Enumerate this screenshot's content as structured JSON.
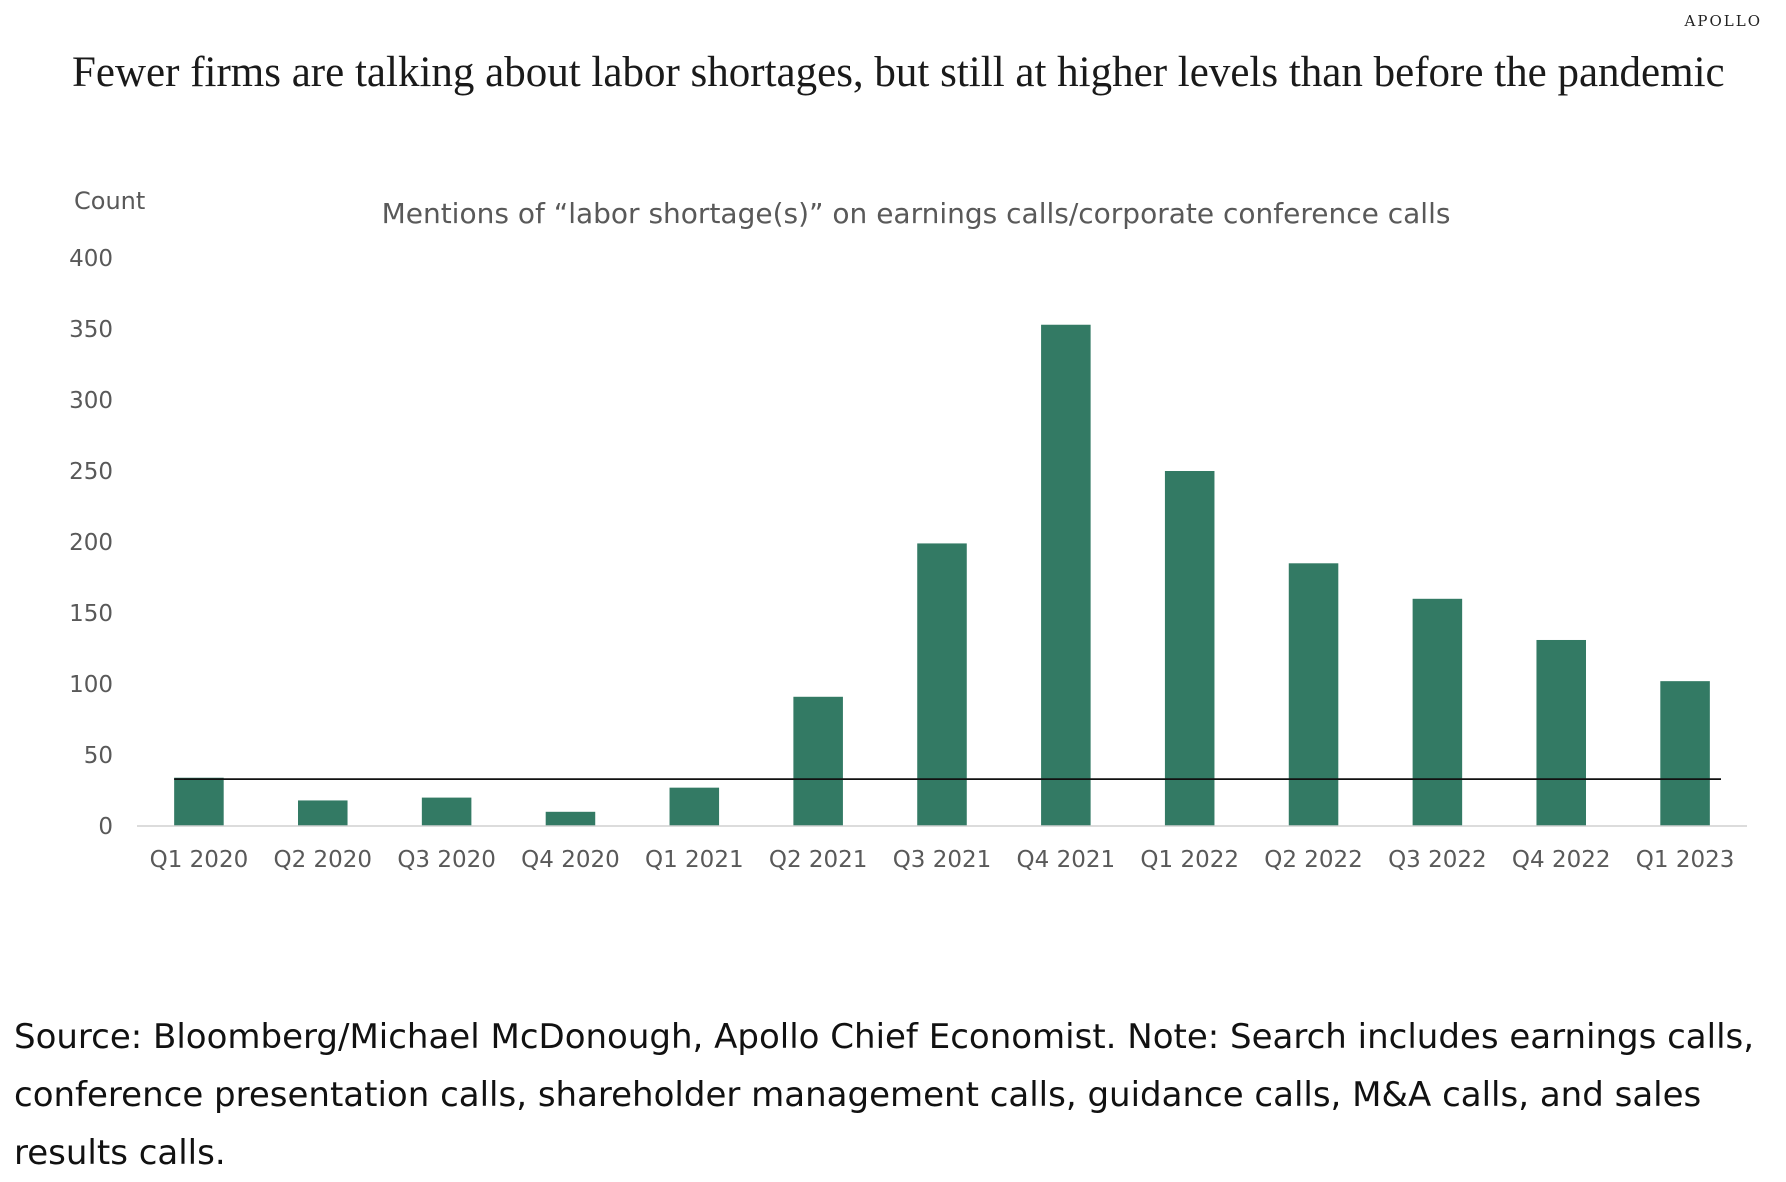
{
  "brand": "APOLLO",
  "headline": "Fewer firms are talking about labor shortages, but still at higher levels than before the pandemic",
  "source_note": "Source: Bloomberg/Michael McDonough, Apollo Chief Economist. Note: Search includes earnings calls, conference presentation calls, shareholder management calls, guidance calls, M&A calls, and sales results calls.",
  "colors": {
    "bar": "#337a64",
    "reference_line": "#111111",
    "axis": "#d0d0d0",
    "text": "#595959"
  },
  "chart_data": {
    "type": "bar",
    "title": "Mentions of “labor shortage(s)” on earnings calls/corporate conference calls",
    "ylabel": "Count",
    "xlabel": "",
    "categories": [
      "Q1 2020",
      "Q2 2020",
      "Q3 2020",
      "Q4 2020",
      "Q1 2021",
      "Q2 2021",
      "Q3 2021",
      "Q4 2021",
      "Q1 2022",
      "Q2 2022",
      "Q3 2022",
      "Q4 2022",
      "Q1 2023"
    ],
    "values": [
      34,
      18,
      20,
      10,
      27,
      91,
      199,
      353,
      250,
      185,
      160,
      131,
      102
    ],
    "ylim": [
      0,
      400
    ],
    "yticks": [
      0,
      50,
      100,
      150,
      200,
      250,
      300,
      350,
      400
    ],
    "reference_line": 33,
    "grid": false,
    "legend": "none"
  }
}
